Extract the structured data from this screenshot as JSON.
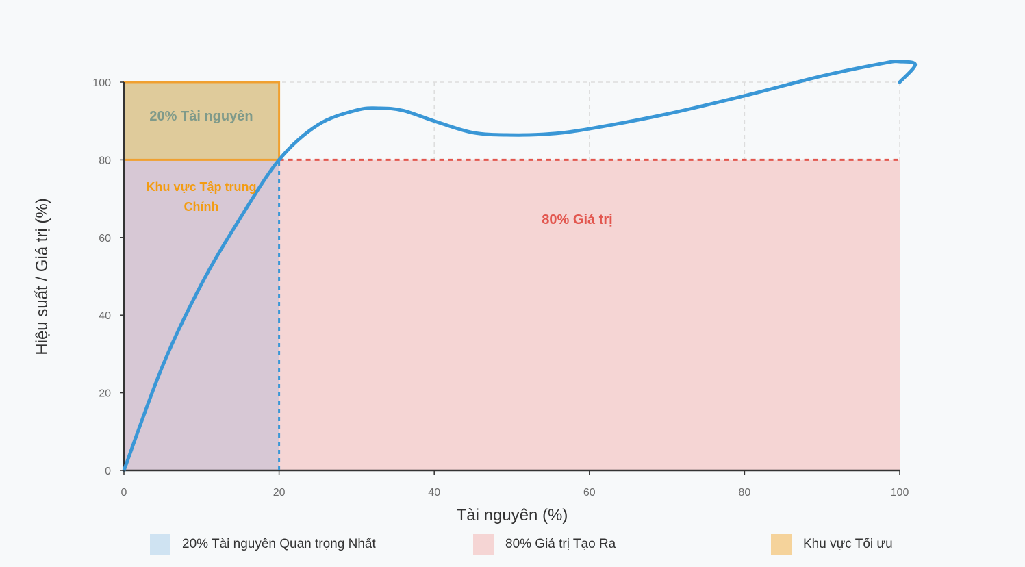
{
  "chart_data": {
    "type": "line",
    "xlabel": "Tài nguyên (%)",
    "ylabel": "Hiệu suất / Giá trị (%)",
    "xlim": [
      0,
      100
    ],
    "ylim": [
      0,
      100
    ],
    "xticks": [
      0,
      20,
      40,
      60,
      80,
      100
    ],
    "yticks": [
      0,
      20,
      40,
      60,
      80,
      100
    ],
    "grid": true,
    "series": [
      {
        "color": "#3a97d6",
        "x": [
          0,
          5,
          10,
          15,
          20,
          25,
          30,
          33,
          36,
          40,
          45,
          50,
          55,
          60,
          70,
          80,
          90,
          98,
          100,
          102,
          100
        ],
        "y": [
          0,
          27,
          48,
          65,
          80,
          89,
          92.8,
          93.3,
          92.7,
          90,
          87,
          86.4,
          86.7,
          88,
          91.8,
          96.5,
          101.6,
          104.9,
          105.3,
          104.5,
          100
        ]
      }
    ],
    "regions": [
      {
        "key": "resources",
        "x": [
          0,
          20
        ],
        "y": [
          0,
          100
        ],
        "color": "#cfe3f2"
      },
      {
        "key": "value",
        "x": [
          0,
          100
        ],
        "y": [
          0,
          80
        ],
        "color": "#f5d5d4"
      },
      {
        "key": "optimal",
        "x": [
          0,
          20
        ],
        "y": [
          80,
          100
        ],
        "color": "#f5d39b"
      }
    ],
    "reference_lines": [
      {
        "axis": "y",
        "value": 80,
        "x_from": 20,
        "x_to": 100,
        "color": "#e2564e",
        "style": "dashed"
      },
      {
        "axis": "x",
        "value": 20,
        "y_from": 0,
        "y_to": 80,
        "color": "#3a97d6",
        "style": "dashed"
      }
    ],
    "annotations": {
      "top_box": "20% Tài nguyên",
      "focus_line1": "Khu vực Tập trung",
      "focus_line2": "Chính",
      "value_label": "80% Giá trị"
    },
    "annotation_colors": {
      "top_box": "#7f9a8a",
      "focus": "#f39c12",
      "value_label": "#e2564e",
      "box_border": "#f0a030"
    },
    "legend": {
      "placement": "bottom",
      "items": [
        {
          "label": "20% Tài nguyên Quan trọng Nhất",
          "color": "#cfe3f2"
        },
        {
          "label": "80% Giá trị Tạo Ra",
          "color": "#f5d5d4"
        },
        {
          "label": "Khu vực Tối ưu",
          "color": "#f5d39b"
        }
      ]
    }
  }
}
